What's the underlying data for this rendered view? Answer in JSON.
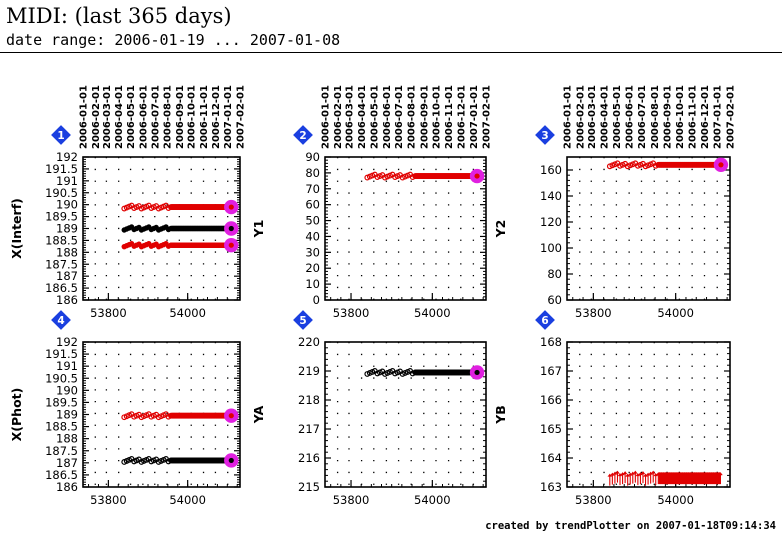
{
  "header": {
    "title": "MIDI: (last 365 days)",
    "subtitle": "date range: 2006-01-19 ... 2007-01-08"
  },
  "footer": {
    "text": "created by trendPlotter on 2007-01-18T09:14:34"
  },
  "colors": {
    "red": "#e00000",
    "black": "#000000",
    "magenta": "#e020e0",
    "badge": "#1a3fe0"
  },
  "date_ticks": [
    "2006-01-01",
    "2006-02-01",
    "2006-03-01",
    "2006-04-01",
    "2006-05-01",
    "2006-06-01",
    "2006-07-01",
    "2006-08-01",
    "2006-09-01",
    "2006-10-01",
    "2006-11-01",
    "2006-12-01",
    "2007-01-01",
    "2007-02-01"
  ],
  "date_tick_mjd": [
    53736,
    53767,
    53795,
    53826,
    53856,
    53887,
    53917,
    53948,
    53979,
    54009,
    54040,
    54070,
    54101,
    54132
  ],
  "chart_data": [
    {
      "type": "scatter",
      "badge": "1",
      "ylabel": "X(Interf)",
      "xlim": [
        53736,
        54132
      ],
      "x_ticks": [
        "53800",
        "54000"
      ],
      "ylim": [
        186,
        192
      ],
      "y_ticks": [
        "186",
        "186.5",
        "187",
        "187.5",
        "188",
        "188.5",
        "189",
        "189.5",
        "190",
        "190.5",
        "191",
        "191.5",
        "192"
      ],
      "series": [
        {
          "color": "red",
          "marker": "open",
          "sparse_from": 53840,
          "dense_from": 53960,
          "x_end": 54110,
          "y": 189.9,
          "last_highlight": true
        },
        {
          "color": "black",
          "marker": "filled",
          "sparse_from": 53840,
          "dense_from": 53960,
          "x_end": 54110,
          "y": 189.0,
          "last_highlight": true
        },
        {
          "color": "red",
          "marker": "filled",
          "sparse_from": 53840,
          "dense_from": 53960,
          "x_end": 54110,
          "y": 188.3,
          "last_highlight": true
        }
      ]
    },
    {
      "type": "scatter",
      "badge": "2",
      "ylabel": "Y1",
      "xlim": [
        53736,
        54132
      ],
      "x_ticks": [
        "53800",
        "54000"
      ],
      "ylim": [
        0,
        90
      ],
      "y_ticks": [
        "0",
        "10",
        "20",
        "30",
        "40",
        "50",
        "60",
        "70",
        "80",
        "90"
      ],
      "series": [
        {
          "color": "red",
          "marker": "open",
          "sparse_from": 53840,
          "dense_from": 53960,
          "x_end": 54110,
          "y": 78,
          "last_highlight": true
        }
      ]
    },
    {
      "type": "scatter",
      "badge": "3",
      "ylabel": "Y2",
      "xlim": [
        53736,
        54132
      ],
      "x_ticks": [
        "53800",
        "54000"
      ],
      "ylim": [
        60,
        170
      ],
      "y_ticks": [
        "60",
        "80",
        "100",
        "120",
        "140",
        "160"
      ],
      "series": [
        {
          "color": "red",
          "marker": "open",
          "sparse_from": 53840,
          "dense_from": 53960,
          "x_end": 54110,
          "y": 164,
          "last_highlight": true
        }
      ]
    },
    {
      "type": "scatter",
      "badge": "4",
      "ylabel": "X(Phot)",
      "xlim": [
        53736,
        54132
      ],
      "x_ticks": [
        "53800",
        "54000"
      ],
      "ylim": [
        186,
        192
      ],
      "y_ticks": [
        "186",
        "186.5",
        "187",
        "187.5",
        "188",
        "188.5",
        "189",
        "189.5",
        "190",
        "190.5",
        "191",
        "191.5",
        "192"
      ],
      "series": [
        {
          "color": "red",
          "marker": "open",
          "sparse_from": 53840,
          "dense_from": 53960,
          "x_end": 54110,
          "y": 188.95,
          "last_highlight": true
        },
        {
          "color": "black",
          "marker": "open",
          "sparse_from": 53840,
          "dense_from": 53960,
          "x_end": 54110,
          "y": 187.1,
          "last_highlight": true
        }
      ]
    },
    {
      "type": "scatter",
      "badge": "5",
      "ylabel": "YA",
      "xlim": [
        53736,
        54132
      ],
      "x_ticks": [
        "53800",
        "54000"
      ],
      "ylim": [
        215,
        220
      ],
      "y_ticks": [
        "215",
        "216",
        "217",
        "218",
        "219",
        "220"
      ],
      "series": [
        {
          "color": "black",
          "marker": "open",
          "sparse_from": 53840,
          "dense_from": 53960,
          "x_end": 54110,
          "y": 218.95,
          "last_highlight": true
        }
      ]
    },
    {
      "type": "scatter",
      "badge": "6",
      "ylabel": "YB",
      "xlim": [
        53736,
        54132
      ],
      "x_ticks": [
        "53800",
        "54000"
      ],
      "ylim": [
        163,
        168
      ],
      "y_ticks": [
        "163",
        "164",
        "165",
        "166",
        "167",
        "168"
      ],
      "series": [
        {
          "color": "red",
          "marker": "arrow-down",
          "sparse_from": 53840,
          "dense_from": 53960,
          "x_end": 54110,
          "y": 163.1,
          "last_highlight": false
        }
      ]
    }
  ]
}
